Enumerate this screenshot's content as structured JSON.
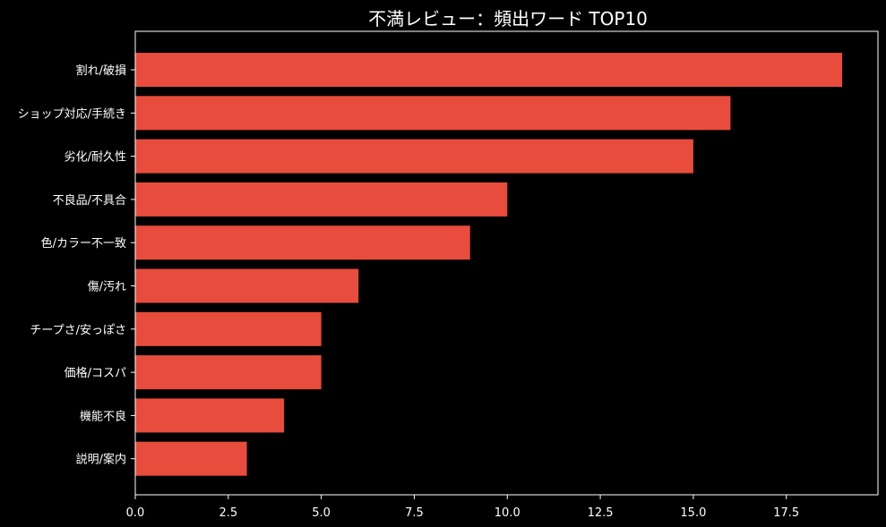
{
  "chart_data": {
    "type": "bar",
    "orientation": "horizontal",
    "title": "不満レビュー：頻出ワード TOP10",
    "xlabel": "",
    "ylabel": "",
    "categories": [
      "割れ/破損",
      "ショップ対応/手続き",
      "劣化/耐久性",
      "不良品/不具合",
      "色/カラー不一致",
      "傷/汚れ",
      "チープさ/安っぽさ",
      "価格/コスパ",
      "機能不良",
      "説明/案内"
    ],
    "values": [
      19,
      16,
      15,
      10,
      9,
      6,
      5,
      5,
      4,
      3
    ],
    "xlim": [
      0,
      20
    ],
    "xticks": [
      "0.0",
      "2.5",
      "5.0",
      "7.5",
      "10.0",
      "12.5",
      "15.0",
      "17.5"
    ],
    "grid": false,
    "legend": "none",
    "colors": {
      "background": "#000000",
      "bar": "#e84c3d",
      "axis": "#ffffff",
      "text": "#ffffff"
    }
  }
}
